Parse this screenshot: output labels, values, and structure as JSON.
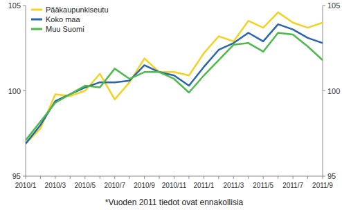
{
  "chart_data": {
    "type": "line",
    "annotation": "*Vuoden 2011 tiedot ovat ennakollisia",
    "categories": [
      "2010/1",
      null,
      "2010/3",
      null,
      "2010/5",
      null,
      "2010/7",
      null,
      "2010/9",
      null,
      "2010/11",
      null,
      "2011/1",
      null,
      "2011/3",
      null,
      "2011/5",
      null,
      "2011/7",
      null,
      "2011/9"
    ],
    "series": [
      {
        "name": "Pääkaupunkiseutu",
        "color": "#f4d21f",
        "values": [
          96.9,
          97.8,
          99.8,
          99.7,
          100.0,
          101.0,
          99.5,
          100.5,
          101.9,
          101.1,
          101.1,
          100.9,
          102.2,
          103.2,
          102.9,
          104.1,
          103.7,
          104.6,
          104.0,
          103.7,
          104.0
        ]
      },
      {
        "name": "Koko maa",
        "color": "#2a64ad",
        "values": [
          96.9,
          98.0,
          99.4,
          99.8,
          100.2,
          100.5,
          100.5,
          100.6,
          101.5,
          101.1,
          100.9,
          100.3,
          101.4,
          102.4,
          102.8,
          103.4,
          102.9,
          103.9,
          103.6,
          103.1,
          102.8
        ]
      },
      {
        "name": "Muu Suomi",
        "color": "#4dbb4a",
        "values": [
          97.1,
          98.2,
          99.3,
          99.8,
          100.3,
          100.2,
          101.3,
          100.7,
          101.1,
          101.1,
          100.7,
          99.9,
          100.9,
          101.8,
          102.7,
          102.8,
          102.3,
          103.4,
          103.3,
          102.6,
          101.8
        ]
      }
    ],
    "ylim": [
      95,
      105
    ],
    "yticks": [
      95,
      100,
      105
    ],
    "y2lim": [
      95,
      105
    ],
    "y2ticks": [
      95,
      100,
      105
    ],
    "grid": false,
    "legend": "upper left"
  }
}
